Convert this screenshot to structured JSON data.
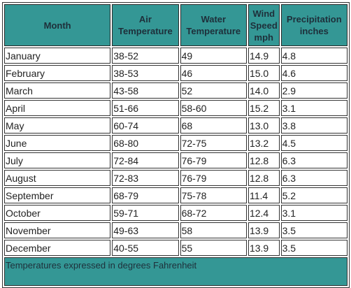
{
  "headers": {
    "month": "Month",
    "air": "Air Temperature",
    "water": "Water Temperature",
    "wind": "Wind Speed mph",
    "precip": "Precipitation inches"
  },
  "rows": [
    {
      "month": "January",
      "air": "38-52",
      "water": "49",
      "wind": "14.9",
      "precip": "4.8"
    },
    {
      "month": "February",
      "air": "38-53",
      "water": "46",
      "wind": "15.0",
      "precip": "4.6"
    },
    {
      "month": "March",
      "air": "43-58",
      "water": "52",
      "wind": "14.0",
      "precip": "2.9"
    },
    {
      "month": "April",
      "air": "51-66",
      "water": "58-60",
      "wind": "15.2",
      "precip": "3.1"
    },
    {
      "month": "May",
      "air": "60-74",
      "water": "68",
      "wind": "13.0",
      "precip": "3.8"
    },
    {
      "month": "June",
      "air": "68-80",
      "water": "72-75",
      "wind": "13.2",
      "precip": "4.5"
    },
    {
      "month": "July",
      "air": "72-84",
      "water": "76-79",
      "wind": "12.8",
      "precip": "6.3"
    },
    {
      "month": "August",
      "air": "72-83",
      "water": "76-79",
      "wind": "12.8",
      "precip": "6.3"
    },
    {
      "month": "September",
      "air": "68-79",
      "water": "75-78",
      "wind": "11.4",
      "precip": "5.2"
    },
    {
      "month": "October",
      "air": "59-71",
      "water": "68-72",
      "wind": "12.4",
      "precip": "3.1"
    },
    {
      "month": "November",
      "air": "49-63",
      "water": "58",
      "wind": "13.9",
      "precip": "3.5"
    },
    {
      "month": "December",
      "air": "40-55",
      "water": "55",
      "wind": "13.9",
      "precip": "3.5"
    }
  ],
  "footnote": "Temperatures expressed in degrees Fahrenheit",
  "colors": {
    "header_bg": "#349795",
    "header_text": "#1e2f3a"
  }
}
